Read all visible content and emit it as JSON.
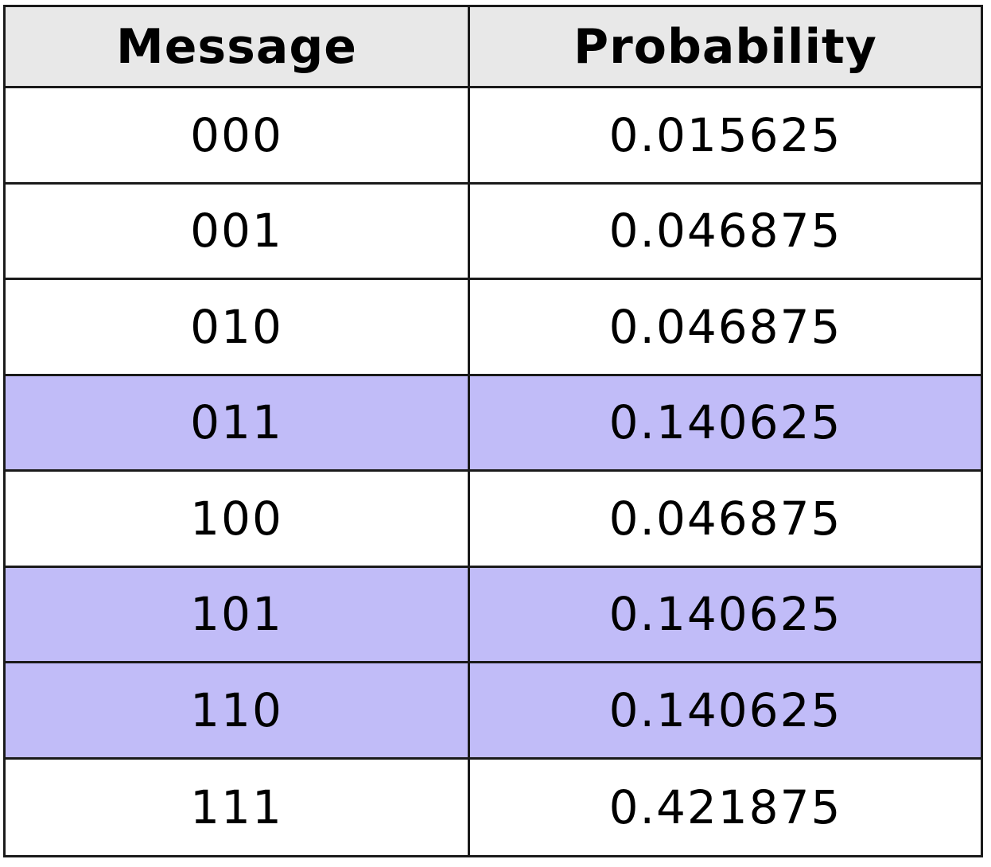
{
  "chart_data": {
    "type": "table",
    "columns": [
      "Message",
      "Probability"
    ],
    "rows": [
      {
        "message": "000",
        "probability": "0.015625",
        "highlighted": false
      },
      {
        "message": "001",
        "probability": "0.046875",
        "highlighted": false
      },
      {
        "message": "010",
        "probability": "0.046875",
        "highlighted": false
      },
      {
        "message": "011",
        "probability": "0.140625",
        "highlighted": true
      },
      {
        "message": "100",
        "probability": "0.046875",
        "highlighted": false
      },
      {
        "message": "101",
        "probability": "0.140625",
        "highlighted": true
      },
      {
        "message": "110",
        "probability": "0.140625",
        "highlighted": true
      },
      {
        "message": "111",
        "probability": "0.421875",
        "highlighted": false
      }
    ],
    "colors": {
      "header_bg": "#e8e8e8",
      "highlight_bg": "#c1bcf8",
      "border": "#1a1a1a"
    }
  }
}
